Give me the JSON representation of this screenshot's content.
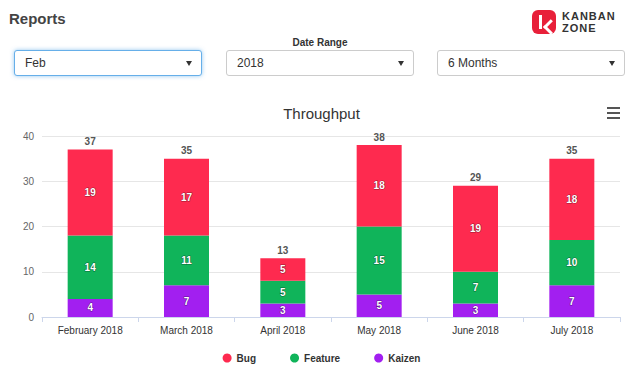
{
  "page": {
    "title": "Reports",
    "logo": [
      "KANBAN",
      "ZONE"
    ],
    "filters": [
      {
        "value": "Feb"
      },
      {
        "label": "Date Range",
        "value": "2018"
      },
      {
        "value": "6 Months"
      }
    ]
  },
  "chart_data": {
    "type": "bar",
    "title": "Throughput",
    "categories": [
      "February 2018",
      "March 2018",
      "April 2018",
      "May 2018",
      "June 2018",
      "July 2018"
    ],
    "series": [
      {
        "name": "Bug",
        "color": "#fe2a4f",
        "values": [
          19,
          17,
          5,
          18,
          19,
          18
        ]
      },
      {
        "name": "Feature",
        "color": "#10b45a",
        "values": [
          14,
          11,
          5,
          15,
          7,
          10
        ]
      },
      {
        "name": "Kaizen",
        "color": "#a21ff0",
        "values": [
          4,
          7,
          3,
          5,
          3,
          7
        ]
      }
    ],
    "totals": [
      37,
      35,
      13,
      38,
      29,
      35
    ],
    "ylim": [
      0,
      40
    ],
    "yticks": [
      0,
      10,
      20,
      30,
      40
    ],
    "stacked": true,
    "data_labels": true,
    "grid": true,
    "legend": "bottom"
  }
}
